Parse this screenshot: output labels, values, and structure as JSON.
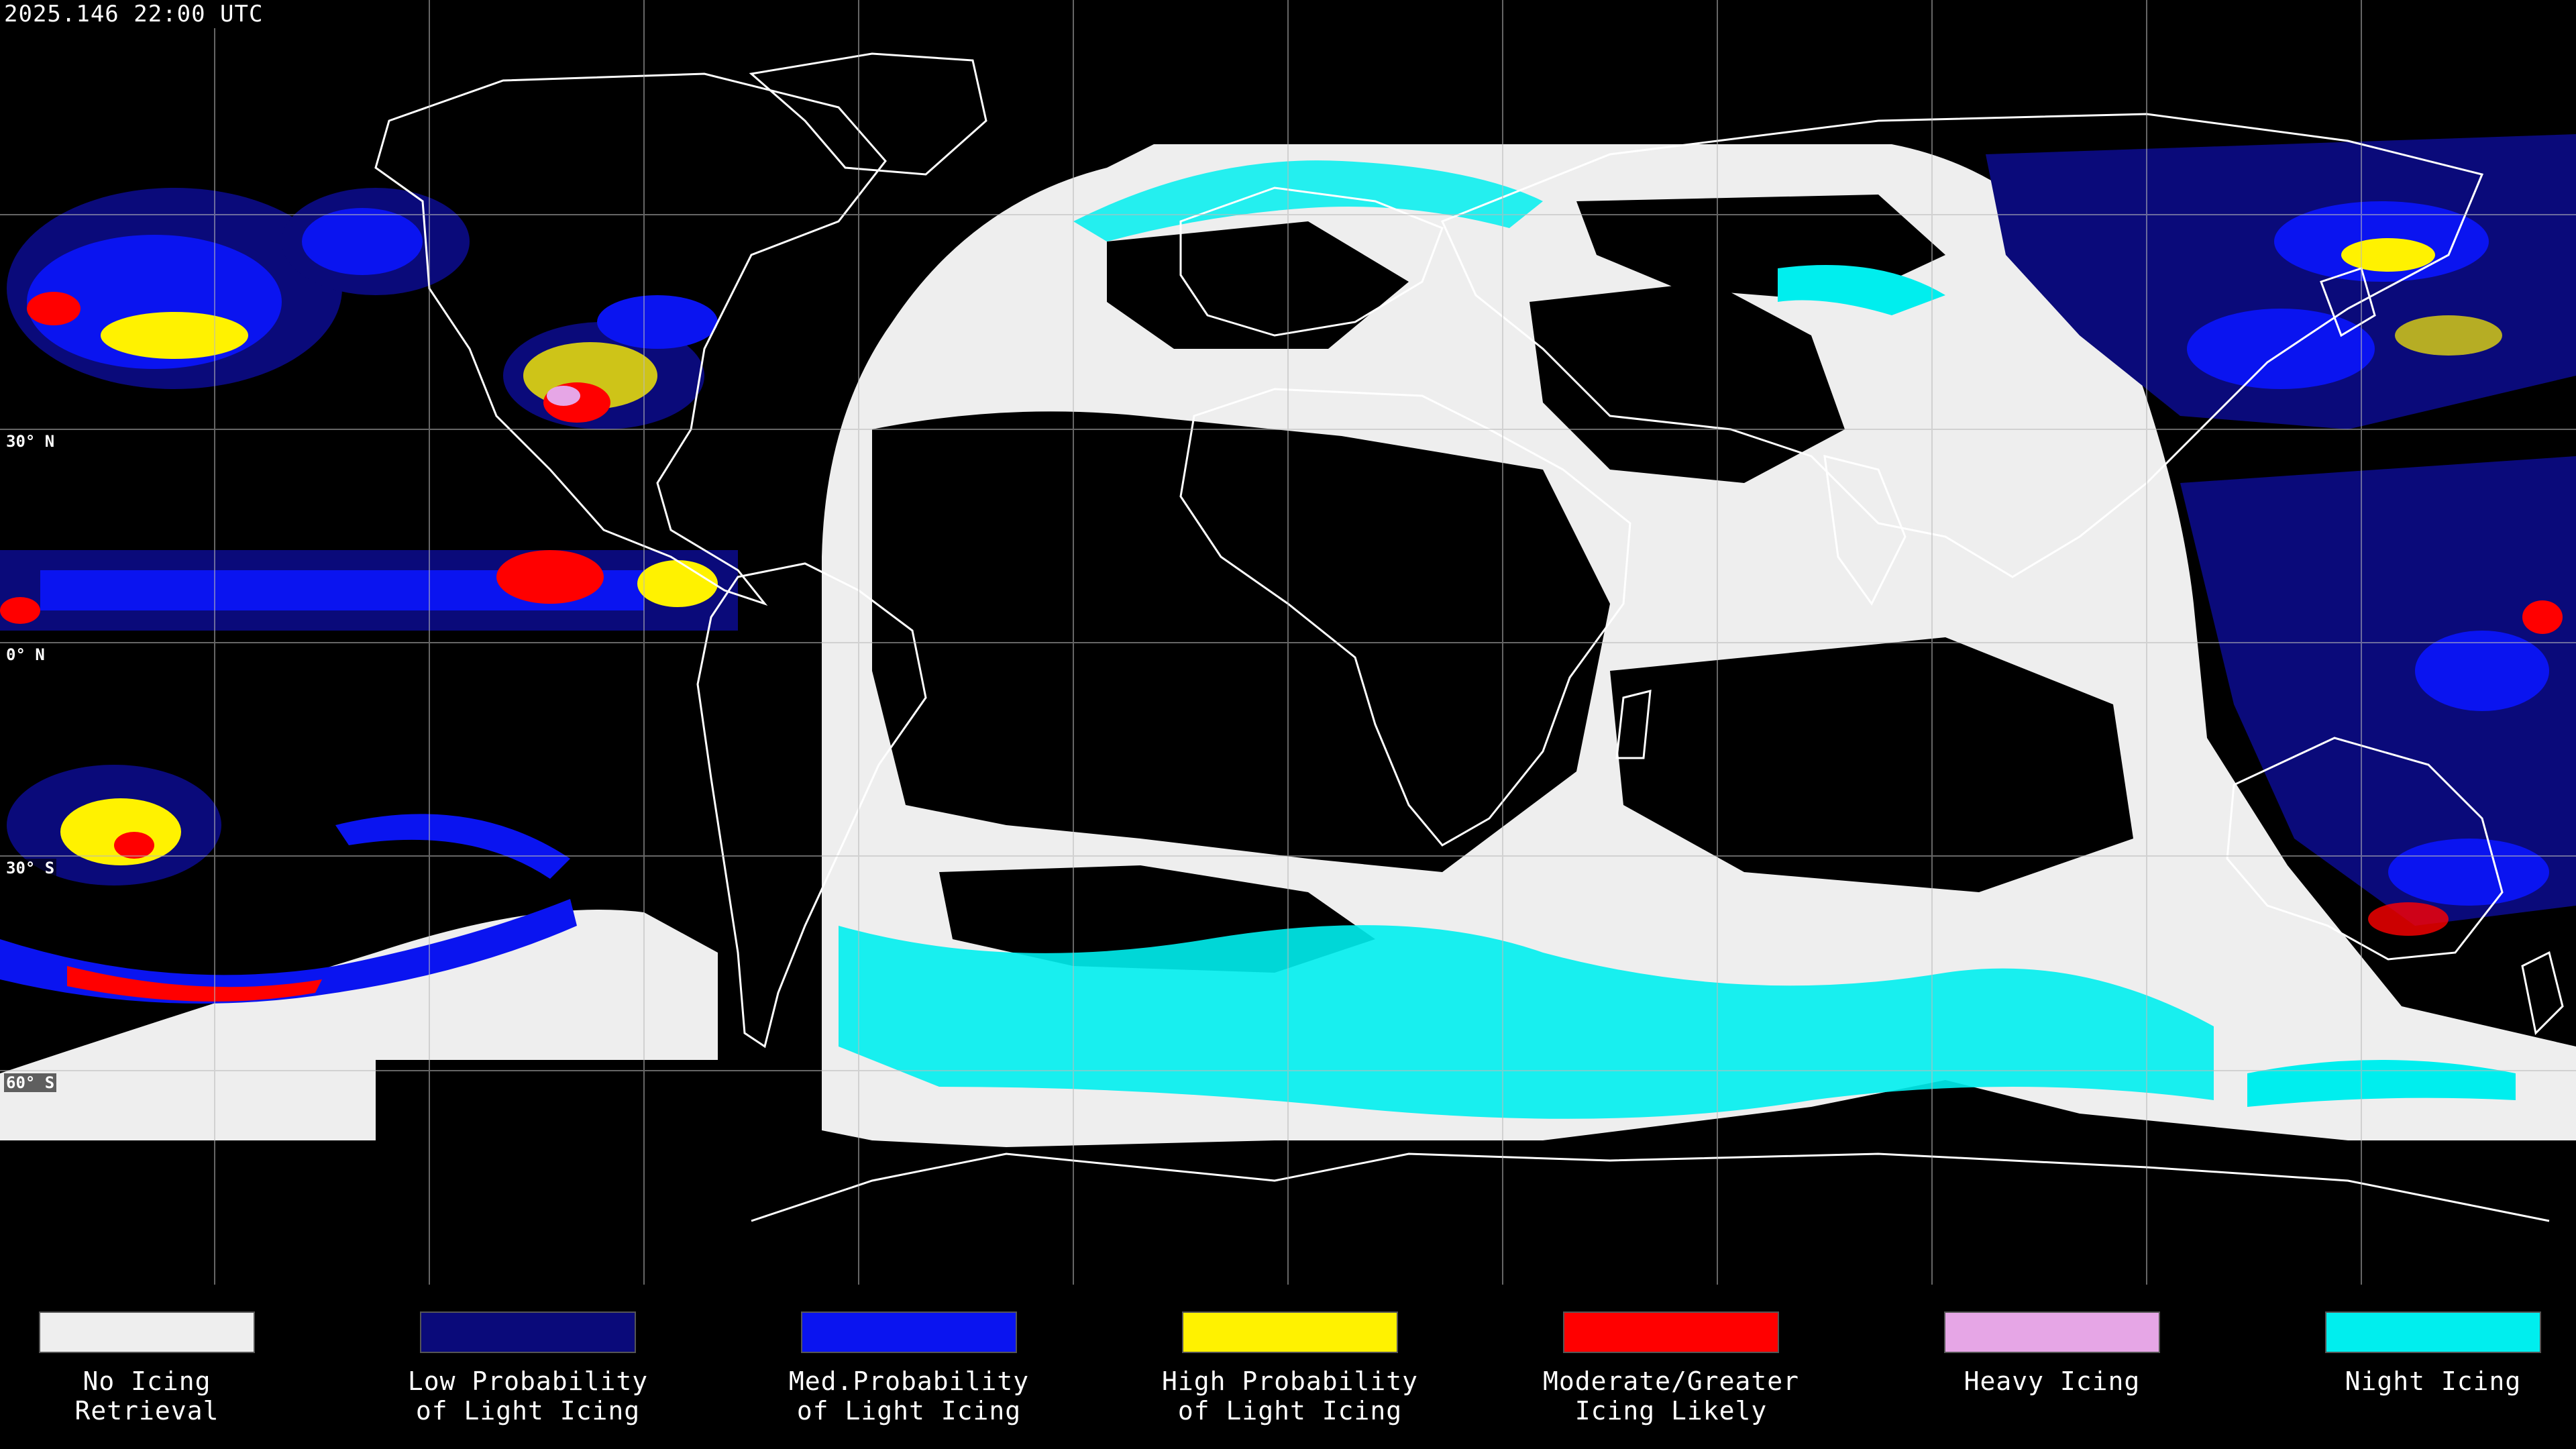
{
  "header": {
    "timestamp": "2025.146 22:00 UTC"
  },
  "latitude_labels": [
    "30° N",
    "0° N",
    "30° S",
    "60° S"
  ],
  "legend": {
    "items": [
      {
        "label": "No Icing\nRetrieval",
        "color": "#eeeeee"
      },
      {
        "label": "Low Probability\nof Light Icing",
        "color": "#0a0a7a"
      },
      {
        "label": "Med.Probability\nof Light Icing",
        "color": "#0a14f0"
      },
      {
        "label": "High Probability\nof Light Icing",
        "color": "#fff200"
      },
      {
        "label": "Moderate/Greater\nIcing Likely",
        "color": "#ff0000"
      },
      {
        "label": "Heavy Icing",
        "color": "#e6a6e6"
      },
      {
        "label": "Night Icing",
        "color": "#00eeee"
      }
    ]
  },
  "map": {
    "background": "#000000",
    "grid_color": "#bbbbbb",
    "coastline_color": "#ffffff"
  }
}
